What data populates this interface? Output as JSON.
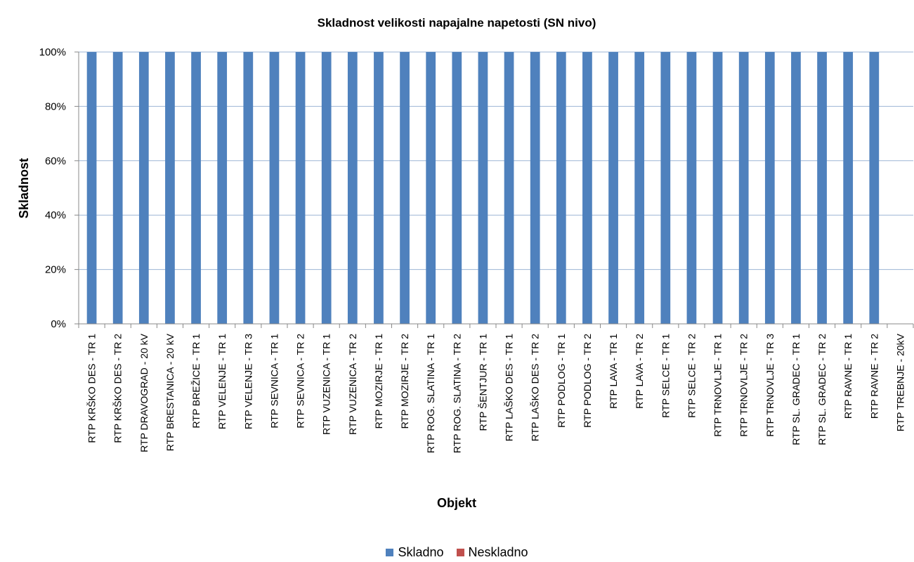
{
  "chart_data": {
    "type": "bar",
    "stacked": true,
    "title": "Skladnost velikosti napajalne napetosti (SN nivo)",
    "xlabel": "Objekt",
    "ylabel": "Skladnost",
    "ylim": [
      0,
      100
    ],
    "yticks": [
      "0%",
      "20%",
      "40%",
      "60%",
      "80%",
      "100%"
    ],
    "grid": true,
    "legend_position": "bottom",
    "categories": [
      "RTP KRŠKO DES - TR 1",
      "RTP KRŠKO DES - TR 2",
      "RTP DRAVOGRAD - 20 kV",
      "RTP BRESTANICA - 20 kV",
      "RTP BREŽICE - TR 1",
      "RTP VELENJE - TR 1",
      "RTP VELENJE - TR 3",
      "RTP SEVNICA - TR 1",
      "RTP SEVNICA - TR 2",
      "RTP VUZENICA - TR 1",
      "RTP VUZENICA - TR 2",
      "RTP MOZIRJE - TR 1",
      "RTP MOZIRJE - TR 2",
      "RTP ROG. SLATINA - TR 1",
      "RTP ROG. SLATINA - TR 2",
      "RTP ŠENTJUR - TR 1",
      "RTP LAŠKO DES - TR 1",
      "RTP LAŠKO DES - TR 2",
      "RTP PODLOG - TR 1",
      "RTP PODLOG - TR 2",
      "RTP LAVA - TR 1",
      "RTP LAVA - TR 2",
      "RTP SELCE - TR 1",
      "RTP SELCE - TR 2",
      "RTP TRNOVLJE - TR 1",
      "RTP TRNOVLJE - TR 2",
      "RTP TRNOVLJE - TR 3",
      "RTP SL. GRADEC - TR 1",
      "RTP SL. GRADEC - TR 2",
      "RTP RAVNE - TR 1",
      "RTP RAVNE - TR 2",
      "RTP TREBNJE - 20kV"
    ],
    "series": [
      {
        "name": "Skladno",
        "color": "#4F81BD",
        "values": [
          100,
          100,
          100,
          100,
          100,
          100,
          100,
          100,
          100,
          100,
          100,
          100,
          100,
          100,
          100,
          100,
          100,
          100,
          100,
          100,
          100,
          100,
          100,
          100,
          100,
          100,
          100,
          100,
          100,
          100,
          100,
          0
        ]
      },
      {
        "name": "Neskladno",
        "color": "#C0504D",
        "values": [
          0,
          0,
          0,
          0,
          0,
          0,
          0,
          0,
          0,
          0,
          0,
          0,
          0,
          0,
          0,
          0,
          0,
          0,
          0,
          0,
          0,
          0,
          0,
          0,
          0,
          0,
          0,
          0,
          0,
          0,
          0,
          0
        ]
      }
    ]
  }
}
